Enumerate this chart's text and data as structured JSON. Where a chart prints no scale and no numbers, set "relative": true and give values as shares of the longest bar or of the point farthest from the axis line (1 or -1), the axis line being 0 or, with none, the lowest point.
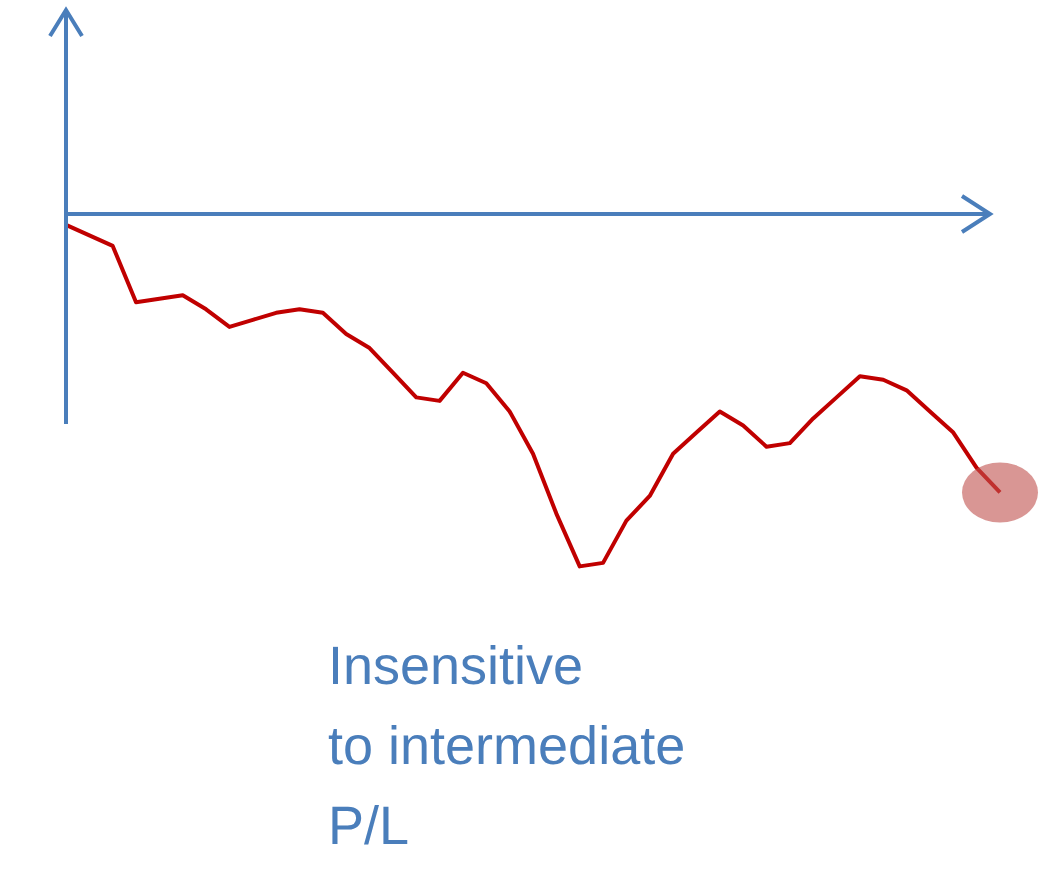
{
  "chart_data": {
    "type": "line",
    "relative": true,
    "categories": [
      null,
      null,
      null,
      null,
      null,
      null,
      null,
      null,
      null,
      null,
      null,
      null,
      null,
      null,
      null,
      null,
      null,
      null,
      null,
      null,
      null,
      null,
      null,
      null,
      null,
      null,
      null,
      null,
      null,
      null,
      null,
      null,
      null,
      null,
      null,
      null,
      null,
      null,
      null,
      null,
      null
    ],
    "series": [
      {
        "color": "#c00000",
        "values": [
          -0.03,
          -0.06,
          -0.09,
          -0.25,
          -0.24,
          -0.23,
          -0.27,
          -0.32,
          -0.3,
          -0.28,
          -0.27,
          -0.28,
          -0.34,
          -0.38,
          -0.45,
          -0.52,
          -0.53,
          -0.45,
          -0.48,
          -0.56,
          -0.68,
          -0.85,
          -1,
          -0.99,
          -0.87,
          -0.8,
          -0.68,
          -0.62,
          -0.56,
          -0.6,
          -0.66,
          -0.65,
          -0.58,
          -0.52,
          -0.46,
          -0.47,
          -0.5,
          -0.56,
          -0.62,
          -0.72,
          -0.79
        ]
      }
    ],
    "marker": "none",
    "line_style": "solid",
    "grid": false,
    "legend": false,
    "annotations": [
      "Insensitive\nto intermediate\nP/L"
    ]
  }
}
